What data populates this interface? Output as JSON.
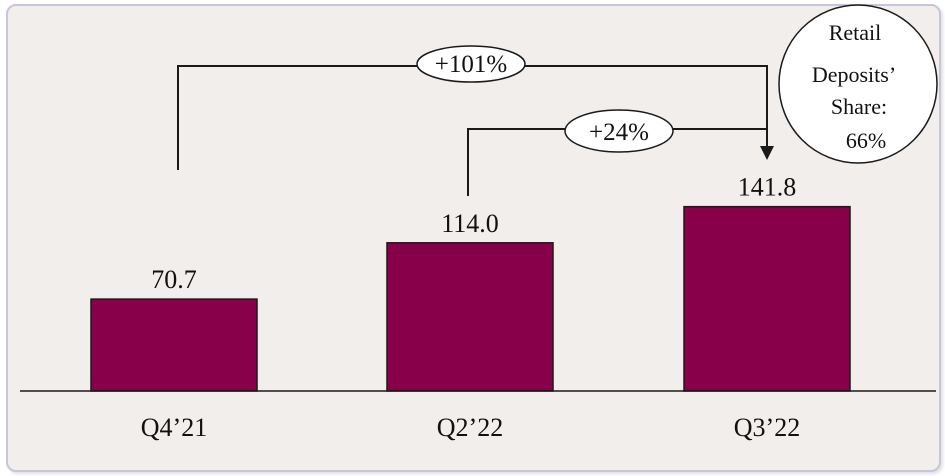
{
  "colors": {
    "bar": "#88004a",
    "panel": "#f1eeeb",
    "panel_border": "#c9c5d9"
  },
  "chart_data": {
    "type": "bar",
    "title": "",
    "xlabel": "",
    "ylabel": "",
    "categories": [
      "Q4’21",
      "Q2’22",
      "Q3’22"
    ],
    "values": [
      70.7,
      114.0,
      141.8
    ],
    "value_labels": [
      "70.7",
      "114.0",
      "141.8"
    ],
    "ylim": [
      0,
      150
    ],
    "grid": false,
    "legend": "none",
    "annotations": {
      "growth_long": {
        "text": "+101%",
        "from": "Q4’21",
        "to": "Q3’22"
      },
      "growth_short": {
        "text": "+24%",
        "from": "Q2’22",
        "to": "Q3’22"
      },
      "share_lines": [
        "Retail",
        "Deposits’",
        "Share:",
        "66%"
      ]
    }
  }
}
